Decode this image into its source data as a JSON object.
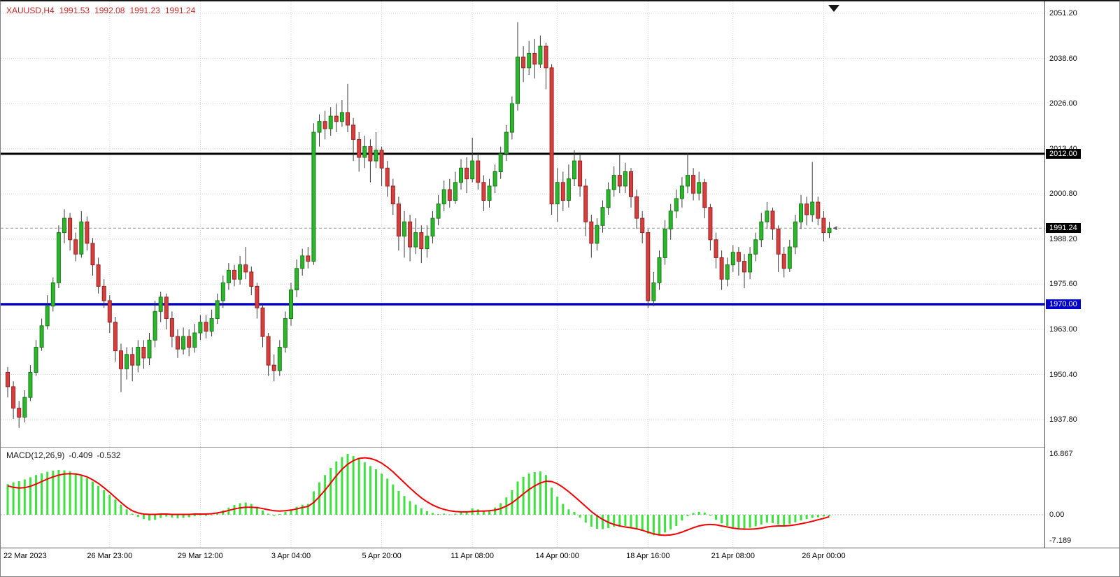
{
  "header": {
    "symbol": "XAUUSD,H4",
    "open": "1991.53",
    "high": "1992.08",
    "low": "1991.23",
    "close": "1991.24"
  },
  "macd_header": {
    "label": "MACD(12,26,9)",
    "macd_value": "-0.409",
    "signal_value": "-0.532"
  },
  "colors": {
    "bull": "#2eb52e",
    "bull_edge": "#167d16",
    "bear": "#d34040",
    "bear_edge": "#9e1f1f",
    "wick": "#3a3a3a",
    "grid": "#d4d4d4",
    "hist": "#3ee23e",
    "signal": "#f00000",
    "last_price_line": "#9c9c9c",
    "header_text": "#c62828",
    "tag_black": "#000000",
    "tag_blue": "#0000cc"
  },
  "chart_data": [
    {
      "type": "candlestick",
      "title": "XAUUSD,H4",
      "symbol": "XAUUSD",
      "timeframe": "H4",
      "current_ohlc": {
        "open": 1991.53,
        "high": 1992.08,
        "low": 1991.23,
        "close": 1991.24
      },
      "grid": true,
      "ylim": [
        1930.2,
        2054.5
      ],
      "y_ticks": [
        2051.2,
        2038.6,
        2026.0,
        2013.4,
        2000.8,
        1988.2,
        1975.6,
        1963.0,
        1950.4,
        1937.8
      ],
      "y_tick_labels": [
        "2051.20",
        "2038.60",
        "2026.00",
        "2013.40",
        "2000.80",
        "1988.20",
        "1975.60",
        "1963.00",
        "1950.40",
        "1937.80"
      ],
      "x_ticks": [
        {
          "index": 0,
          "label": "22 Mar 2023"
        },
        {
          "index": 18,
          "label": "26 Mar 23:00"
        },
        {
          "index": 34,
          "label": "29 Mar 12:00"
        },
        {
          "index": 50,
          "label": "3 Apr 04:00"
        },
        {
          "index": 66,
          "label": "5 Apr 20:00"
        },
        {
          "index": 82,
          "label": "11 Apr 08:00"
        },
        {
          "index": 97,
          "label": "14 Apr 00:00"
        },
        {
          "index": 113,
          "label": "18 Apr 16:00"
        },
        {
          "index": 128,
          "label": "21 Apr 08:00"
        },
        {
          "index": 144,
          "label": "26 Apr 00:00"
        }
      ],
      "hlines": [
        {
          "price": 2012.0,
          "label": "2012.00",
          "color": "#000000"
        },
        {
          "price": 1970.0,
          "label": "1970.00",
          "color": "#0000cc"
        }
      ],
      "last_price": 1991.24,
      "last_price_label": "1991.24",
      "candles_ohlc": [
        [
          1951,
          1952.5,
          1944,
          1947
        ],
        [
          1947,
          1948.5,
          1938,
          1941
        ],
        [
          1941,
          1943,
          1935.5,
          1938.5
        ],
        [
          1938.5,
          1946,
          1937,
          1944
        ],
        [
          1944,
          1953,
          1943,
          1951
        ],
        [
          1951,
          1960,
          1950,
          1958
        ],
        [
          1958,
          1966,
          1957,
          1964
        ],
        [
          1964,
          1972.5,
          1963,
          1969.5
        ],
        [
          1969.5,
          1977.5,
          1968,
          1976
        ],
        [
          1976,
          1992,
          1974.5,
          1990
        ],
        [
          1990,
          1996.5,
          1987,
          1994
        ],
        [
          1994,
          1995.5,
          1985,
          1988
        ],
        [
          1988,
          1990,
          1982,
          1984
        ],
        [
          1984,
          1996,
          1983,
          1993
        ],
        [
          1993,
          1994.5,
          1985,
          1987
        ],
        [
          1987,
          1988.5,
          1978,
          1981
        ],
        [
          1981,
          1983,
          1973,
          1975
        ],
        [
          1975,
          1977,
          1969,
          1971
        ],
        [
          1971,
          1972.5,
          1962,
          1965
        ],
        [
          1965,
          1966.5,
          1954,
          1957
        ],
        [
          1957,
          1959,
          1945.5,
          1952
        ],
        [
          1952,
          1958,
          1949,
          1956
        ],
        [
          1956,
          1958,
          1948.5,
          1953
        ],
        [
          1953,
          1960,
          1951,
          1958
        ],
        [
          1958,
          1960,
          1952,
          1955
        ],
        [
          1955,
          1962,
          1953,
          1960
        ],
        [
          1960,
          1971,
          1958,
          1968
        ],
        [
          1968,
          1973.5,
          1965,
          1972
        ],
        [
          1972,
          1973,
          1963,
          1966
        ],
        [
          1966,
          1968,
          1958,
          1961
        ],
        [
          1961,
          1963,
          1955,
          1957.5
        ],
        [
          1957.5,
          1963.5,
          1956,
          1961
        ],
        [
          1961,
          1963,
          1955.5,
          1958
        ],
        [
          1958,
          1964.5,
          1956.5,
          1962
        ],
        [
          1962,
          1967,
          1960,
          1965
        ],
        [
          1965,
          1967,
          1960.5,
          1962.5
        ],
        [
          1962.5,
          1968.5,
          1961,
          1966
        ],
        [
          1966,
          1973,
          1964.5,
          1971
        ],
        [
          1971,
          1978,
          1969,
          1976
        ],
        [
          1976,
          1981.5,
          1974,
          1979.5
        ],
        [
          1979.5,
          1981,
          1975,
          1977
        ],
        [
          1977,
          1983.5,
          1975.5,
          1981
        ],
        [
          1981,
          1986,
          1977,
          1979
        ],
        [
          1979,
          1980.5,
          1972.5,
          1975
        ],
        [
          1975,
          1976,
          1966,
          1969
        ],
        [
          1969,
          1970,
          1958,
          1961
        ],
        [
          1961,
          1962,
          1950,
          1953
        ],
        [
          1953,
          1956,
          1948.5,
          1951.5
        ],
        [
          1951.5,
          1960,
          1950,
          1958
        ],
        [
          1958,
          1968,
          1956.5,
          1966
        ],
        [
          1966,
          1976,
          1964,
          1974
        ],
        [
          1974,
          1982.5,
          1972,
          1980
        ],
        [
          1980,
          1985.5,
          1978,
          1983.5
        ],
        [
          1983.5,
          1986,
          1980,
          1982
        ],
        [
          1982,
          2020.5,
          1981,
          2018
        ],
        [
          2018,
          2023,
          2014,
          2021
        ],
        [
          2021,
          2024,
          2016,
          2019
        ],
        [
          2019,
          2025,
          2017,
          2022.5
        ],
        [
          2022.5,
          2026,
          2018,
          2021
        ],
        [
          2021,
          2027,
          2019.5,
          2023.5
        ],
        [
          2023.5,
          2031.5,
          2018,
          2020
        ],
        [
          2020,
          2022,
          2010,
          2016
        ],
        [
          2016,
          2018,
          2007,
          2011
        ],
        [
          2011,
          2017,
          2008,
          2014
        ],
        [
          2014,
          2016,
          2004,
          2010
        ],
        [
          2010,
          2018,
          2008,
          2013
        ],
        [
          2013,
          2014,
          2003,
          2008
        ],
        [
          2008,
          2010,
          2000,
          2003
        ],
        [
          2003,
          2005,
          1995,
          1998
        ],
        [
          1998,
          2000,
          1985,
          1989
        ],
        [
          1989,
          1996,
          1983,
          1993
        ],
        [
          1993,
          1995,
          1982,
          1986
        ],
        [
          1986,
          1994,
          1984,
          1990
        ],
        [
          1990,
          1992,
          1981.5,
          1985.5
        ],
        [
          1985.5,
          1992,
          1983,
          1989
        ],
        [
          1989,
          1996,
          1987,
          1994
        ],
        [
          1994,
          2000.5,
          1992,
          1998
        ],
        [
          1998,
          2004.5,
          1996,
          2002
        ],
        [
          2002,
          2005,
          1997,
          1999
        ],
        [
          1999,
          2007,
          1998,
          2004
        ],
        [
          2004,
          2010.5,
          2002,
          2008
        ],
        [
          2008,
          2011,
          2001,
          2005
        ],
        [
          2005,
          2016.5,
          2004,
          2010
        ],
        [
          2010,
          2012,
          2002,
          2004
        ],
        [
          2004,
          2006,
          1996,
          1999
        ],
        [
          1999,
          2005,
          1997,
          2003
        ],
        [
          2003,
          2009,
          2001,
          2007
        ],
        [
          2007,
          2014,
          2005,
          2012
        ],
        [
          2012,
          2020,
          2010,
          2018
        ],
        [
          2018,
          2028,
          2016,
          2026
        ],
        [
          2026,
          2048.7,
          2024,
          2039
        ],
        [
          2039,
          2042,
          2032,
          2036
        ],
        [
          2036,
          2043.5,
          2034,
          2040
        ],
        [
          2040,
          2044,
          2033,
          2037
        ],
        [
          2037,
          2045,
          2036,
          2042
        ],
        [
          2042,
          2043,
          2030,
          2036
        ],
        [
          2036,
          2037,
          1995,
          1998
        ],
        [
          1998,
          2008,
          1993,
          2004
        ],
        [
          2004,
          2007,
          1996,
          1999
        ],
        [
          1999,
          2009,
          1997,
          2005
        ],
        [
          2005,
          2013,
          2003,
          2010
        ],
        [
          2010,
          2012,
          2000,
          2003
        ],
        [
          2003,
          2005,
          1989,
          1993
        ],
        [
          1993,
          1995,
          1983,
          1987
        ],
        [
          1987,
          1994,
          1985,
          1992
        ],
        [
          1992,
          1999,
          1990,
          1997
        ],
        [
          1997,
          2004,
          1995,
          2002
        ],
        [
          2002,
          2008.5,
          2000,
          2006
        ],
        [
          2006,
          2012,
          2001,
          2003
        ],
        [
          2003,
          2009.5,
          2001,
          2007
        ],
        [
          2007,
          2008,
          1997,
          2000
        ],
        [
          2000,
          2002,
          1991,
          1994
        ],
        [
          1994,
          1996,
          1987,
          1990
        ],
        [
          1990,
          1991,
          1969,
          1971
        ],
        [
          1971,
          1979,
          1969.5,
          1976
        ],
        [
          1976,
          1985,
          1974,
          1983
        ],
        [
          1983,
          1993.5,
          1981,
          1991
        ],
        [
          1991,
          1998,
          1988,
          1996
        ],
        [
          1996,
          2002,
          1994,
          1999.5
        ],
        [
          1999.5,
          2005.5,
          1997,
          2003
        ],
        [
          2003,
          2012.3,
          2001,
          2006
        ],
        [
          2006,
          2008,
          1999,
          2001
        ],
        [
          2001,
          2007,
          1999,
          2004
        ],
        [
          2004,
          2005,
          1994,
          1997
        ],
        [
          1997,
          1998,
          1985,
          1988
        ],
        [
          1988,
          1990,
          1980,
          1983
        ],
        [
          1983,
          1985,
          1974,
          1977
        ],
        [
          1977,
          1983,
          1975,
          1981
        ],
        [
          1981,
          1986.5,
          1979,
          1984.5
        ],
        [
          1984.5,
          1986,
          1978,
          1982
        ],
        [
          1982,
          1984,
          1974.5,
          1979
        ],
        [
          1979,
          1986,
          1977,
          1984
        ],
        [
          1984,
          1990,
          1982,
          1988
        ],
        [
          1988,
          1995.5,
          1986,
          1993
        ],
        [
          1993,
          1998.5,
          1991,
          1996
        ],
        [
          1996,
          1997,
          1988,
          1991
        ],
        [
          1991,
          1992,
          1979,
          1984
        ],
        [
          1984,
          1986,
          1977.5,
          1980
        ],
        [
          1980,
          1988,
          1979,
          1986
        ],
        [
          1986,
          1995,
          1984,
          1993
        ],
        [
          1993,
          2000.5,
          1991,
          1998
        ],
        [
          1998,
          2000,
          1992,
          1995
        ],
        [
          1995,
          2009.7,
          1993,
          1998.5
        ],
        [
          1998.5,
          2000,
          1992,
          1994
        ],
        [
          1994,
          1996,
          1987.5,
          1990
        ],
        [
          1990,
          1993,
          1988.5,
          1991.24
        ]
      ]
    },
    {
      "type": "bar",
      "name": "MACD(12,26,9)",
      "values_display": [
        -0.409,
        -0.532
      ],
      "legend_position": "top-left",
      "levels": [
        16.867,
        0.0,
        -7.189
      ],
      "level_labels": [
        "16.867",
        "0.00",
        "-7.189"
      ],
      "histogram": [
        8.5,
        9.0,
        9.3,
        9.8,
        10.4,
        11.0,
        11.5,
        11.9,
        12.2,
        12.4,
        12.3,
        12.0,
        11.5,
        11.0,
        10.2,
        9.2,
        8.0,
        6.8,
        5.5,
        4.2,
        2.8,
        1.5,
        0.3,
        -0.6,
        -1.2,
        -1.6,
        -1.4,
        -0.9,
        -0.5,
        -0.8,
        -1.0,
        -0.9,
        -0.7,
        -0.4,
        -0.2,
        -0.3,
        -0.1,
        0.4,
        1.2,
        2.0,
        2.7,
        3.2,
        3.4,
        3.0,
        2.2,
        1.2,
        0.3,
        -0.3,
        0.2,
        0.8,
        1.5,
        2.2,
        2.8,
        3.0,
        6.5,
        9.0,
        11.0,
        13.0,
        14.8,
        16.0,
        16.867,
        16.3,
        15.4,
        14.5,
        13.5,
        12.6,
        11.4,
        10.0,
        8.4,
        6.6,
        5.2,
        3.8,
        2.8,
        1.8,
        1.0,
        0.5,
        0.2,
        0.3,
        0.1,
        0.3,
        0.8,
        1.0,
        1.8,
        1.5,
        1.0,
        1.2,
        2.0,
        3.2,
        4.8,
        6.8,
        9.2,
        10.5,
        11.4,
        11.8,
        12.0,
        11.0,
        7.5,
        5.0,
        3.0,
        1.5,
        0.8,
        -0.8,
        -2.2,
        -3.3,
        -3.9,
        -4.0,
        -3.7,
        -3.3,
        -3.0,
        -3.1,
        -3.4,
        -3.8,
        -4.4,
        -5.2,
        -5.7,
        -5.5,
        -4.9,
        -4.1,
        -3.1,
        -1.6,
        -0.4,
        0.5,
        0.8,
        0.6,
        -0.3,
        -1.4,
        -2.4,
        -3.1,
        -3.5,
        -3.7,
        -3.8,
        -3.6,
        -3.2,
        -2.7,
        -2.2,
        -2.3,
        -2.7,
        -3.0,
        -2.6,
        -2.1,
        -1.6,
        -1.2,
        -0.9,
        -0.7,
        -0.5,
        -0.409
      ],
      "signal": [
        8.0,
        7.6,
        7.4,
        7.5,
        7.9,
        8.5,
        9.2,
        9.9,
        10.5,
        11.0,
        11.3,
        11.4,
        11.3,
        11.0,
        10.5,
        9.7,
        8.7,
        7.5,
        6.2,
        4.8,
        3.4,
        2.1,
        1.1,
        0.5,
        0.2,
        0.1,
        0.1,
        0.2,
        0.2,
        0.1,
        0.1,
        0.1,
        0.1,
        0.2,
        0.2,
        0.2,
        0.3,
        0.5,
        0.8,
        1.2,
        1.6,
        1.9,
        2.1,
        2.1,
        2.0,
        1.7,
        1.4,
        1.1,
        1.0,
        1.1,
        1.3,
        1.6,
        2.0,
        2.3,
        3.4,
        5.0,
        6.8,
        8.8,
        10.8,
        12.6,
        14.0,
        15.0,
        15.6,
        15.8,
        15.6,
        15.1,
        14.3,
        13.2,
        11.9,
        10.4,
        8.9,
        7.4,
        6.0,
        4.7,
        3.6,
        2.7,
        2.0,
        1.5,
        1.1,
        0.9,
        0.8,
        0.8,
        0.9,
        1.0,
        1.0,
        1.1,
        1.3,
        1.7,
        2.4,
        3.3,
        4.5,
        5.8,
        7.0,
        8.0,
        8.8,
        9.3,
        9.2,
        8.6,
        7.6,
        6.4,
        5.1,
        3.7,
        2.3,
        0.9,
        -0.3,
        -1.3,
        -2.1,
        -2.7,
        -3.1,
        -3.4,
        -3.6,
        -3.9,
        -4.3,
        -4.8,
        -5.3,
        -5.6,
        -5.7,
        -5.6,
        -5.3,
        -4.8,
        -4.2,
        -3.6,
        -3.1,
        -2.8,
        -2.7,
        -2.8,
        -3.1,
        -3.4,
        -3.7,
        -3.9,
        -4.0,
        -4.0,
        -3.9,
        -3.7,
        -3.4,
        -3.2,
        -3.1,
        -3.1,
        -3.0,
        -2.8,
        -2.5,
        -2.2,
        -1.8,
        -1.4,
        -1.0,
        -0.532
      ]
    }
  ]
}
